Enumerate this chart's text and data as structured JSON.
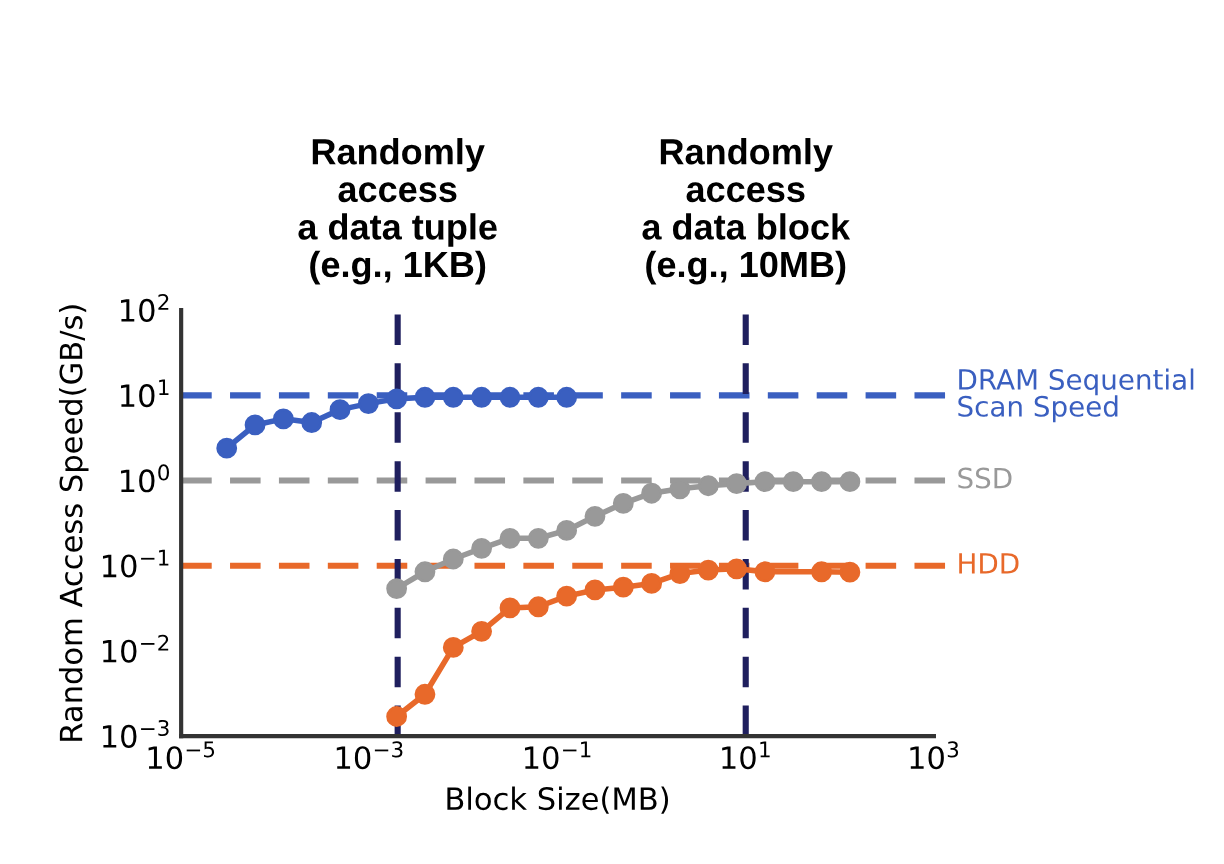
{
  "chart_data": {
    "type": "line",
    "xlabel": "Block Size(MB)",
    "ylabel": "Random Access Speed(GB/s)",
    "log": "xy",
    "marker": "circle",
    "line_style": "solid",
    "grid": false,
    "legend": false,
    "xlim": [
      1e-05,
      1000
    ],
    "ylim": [
      0.001,
      100
    ],
    "xticks": [
      {
        "value": 1e-05,
        "label": "10$^{−5}$"
      },
      {
        "value": 0.001,
        "label": "10$^{−3}$"
      },
      {
        "value": 0.1,
        "label": "10$^{−1}$"
      },
      {
        "value": 10,
        "label": "10$^{1}$"
      },
      {
        "value": 1000,
        "label": "10$^{3}$"
      }
    ],
    "yticks": [
      {
        "value": 0.001,
        "label": "10$^{−3}$"
      },
      {
        "value": 0.01,
        "label": "10$^{−2}$"
      },
      {
        "value": 0.1,
        "label": "10$^{−1}$"
      },
      {
        "value": 1,
        "label": "10$^{0}$"
      },
      {
        "value": 10,
        "label": "10$^{1}$"
      },
      {
        "value": 100,
        "label": "10$^{2}$"
      }
    ],
    "series": [
      {
        "color": "#3a5fc0",
        "x": [
          3.05e-05,
          6.1e-05,
          0.000122,
          0.000244,
          0.000488,
          0.000977,
          0.00195,
          0.0039,
          0.0078,
          0.0156,
          0.03125,
          0.0625,
          0.125
        ],
        "values": [
          2.4,
          4.5,
          5.3,
          4.8,
          6.8,
          8,
          9.1,
          9.5,
          9.5,
          9.5,
          9.5,
          9.5,
          9.5
        ]
      },
      {
        "color": "#999999",
        "x": [
          0.00195,
          0.0039,
          0.0078,
          0.0156,
          0.03125,
          0.0625,
          0.125,
          0.25,
          0.5,
          1,
          2,
          4,
          8,
          16,
          32,
          64,
          128
        ],
        "values": [
          0.054,
          0.085,
          0.12,
          0.16,
          0.21,
          0.21,
          0.26,
          0.38,
          0.54,
          0.71,
          0.8,
          0.87,
          0.92,
          0.97,
          0.97,
          0.97,
          0.97
        ]
      },
      {
        "color": "#e8692a",
        "x": [
          0.00195,
          0.0039,
          0.0078,
          0.0156,
          0.03125,
          0.0625,
          0.125,
          0.25,
          0.5,
          1,
          2,
          4,
          8,
          16,
          64,
          128
        ],
        "values": [
          0.0017,
          0.0031,
          0.011,
          0.017,
          0.032,
          0.033,
          0.044,
          0.052,
          0.056,
          0.062,
          0.081,
          0.089,
          0.092,
          0.085,
          0.085,
          0.084
        ]
      }
    ],
    "ref_lines": [
      {
        "axis": "y",
        "value": 10,
        "label": "DRAM Sequential\nScan Speed",
        "color": "#3a5fc0",
        "line_style": "dashed"
      },
      {
        "axis": "y",
        "value": 1,
        "label": "SSD",
        "color": "#999999",
        "line_style": "dashed"
      },
      {
        "axis": "y",
        "value": 0.1,
        "label": "HDD",
        "color": "#e8692a",
        "line_style": "dashed"
      },
      {
        "axis": "x",
        "value": 0.002,
        "label": "Randomly\naccess\na data tuple\n(e.g., 1KB)",
        "color": "#1f1f5e",
        "line_style": "dashed"
      },
      {
        "axis": "x",
        "value": 10,
        "label": "Randomly\naccess\na data block\n(e.g., 10MB)",
        "color": "#1f1f5e",
        "line_style": "dashed"
      }
    ]
  }
}
